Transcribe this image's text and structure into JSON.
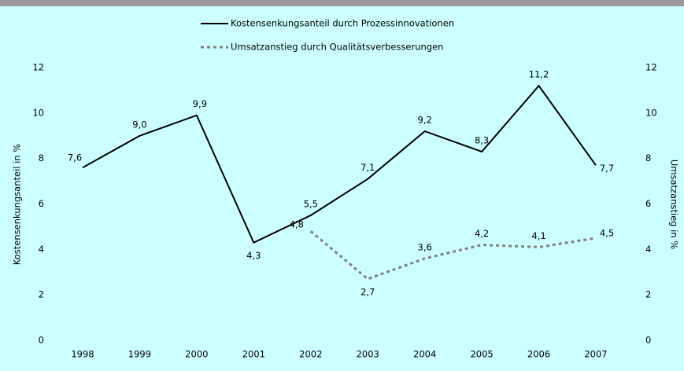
{
  "chart_data": {
    "type": "line",
    "categories": [
      "1998",
      "1999",
      "2000",
      "2001",
      "2002",
      "2003",
      "2004",
      "2005",
      "2006",
      "2007"
    ],
    "series": [
      {
        "name": "Kostensenkungsanteil durch Prozessinnovationen",
        "color": "#000000",
        "style": "solid",
        "values": [
          7.6,
          9.0,
          9.9,
          4.3,
          5.5,
          7.1,
          9.2,
          8.3,
          11.2,
          7.7
        ],
        "value_labels": [
          "7,6",
          "9,0",
          "9,9",
          "4,3",
          "5,5",
          "7,1",
          "9,2",
          "8,3",
          "11,2",
          "7,7"
        ]
      },
      {
        "name": "Umsatzanstieg durch Qualitätsverbesserungen",
        "color": "#808080",
        "style": "dashed",
        "axis": "y2",
        "values": [
          null,
          null,
          null,
          null,
          4.8,
          2.7,
          3.6,
          4.2,
          4.1,
          4.5
        ],
        "value_labels": [
          null,
          null,
          null,
          null,
          "4,8",
          "2,7",
          "3,6",
          "4,2",
          "4,1",
          "4,5"
        ]
      }
    ],
    "ylabel": "Kostensenkungsanteil in %",
    "y2label": "Umsatzanstieg in %",
    "ylim": [
      0,
      12
    ],
    "yticks": [
      0,
      2,
      4,
      6,
      8,
      10,
      12
    ],
    "y2lim": [
      0,
      12
    ],
    "y2ticks": [
      0,
      2,
      4,
      6,
      8,
      10,
      12
    ],
    "grid": false
  }
}
